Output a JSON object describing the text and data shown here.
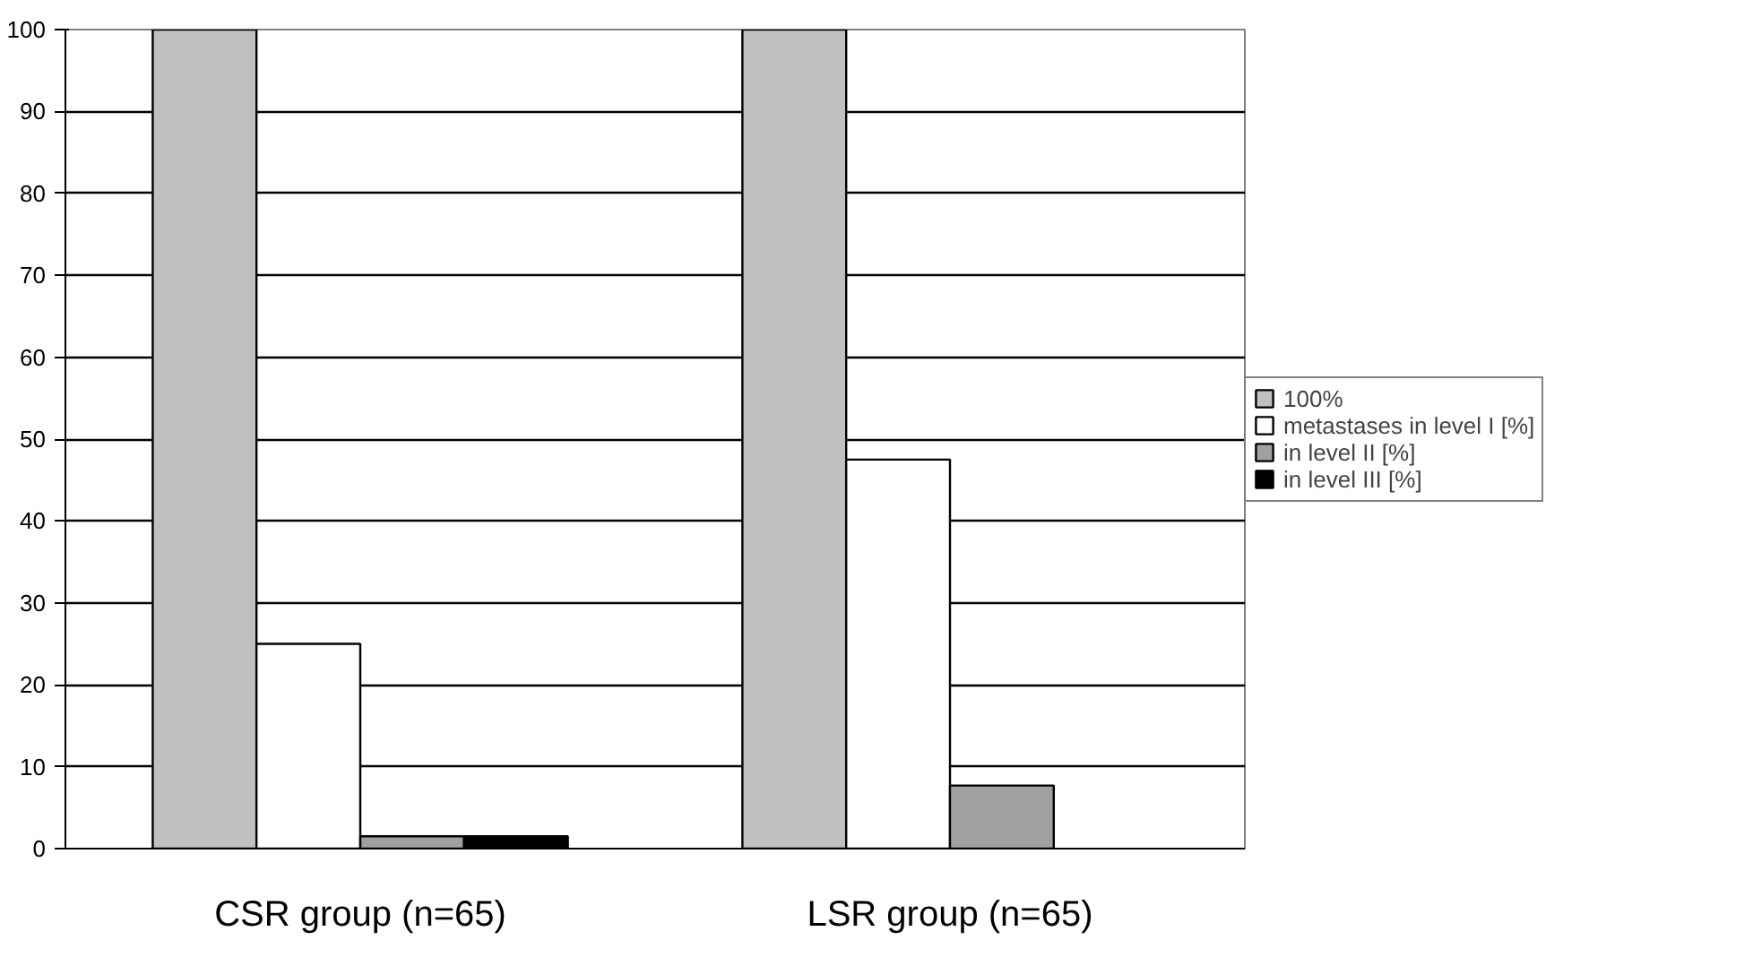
{
  "chart_data": {
    "type": "bar",
    "categories": [
      "CSR group (n=65)",
      "LSR group (n=65)"
    ],
    "series": [
      {
        "name": "100%",
        "color": "#c0c0c0",
        "values": [
          100,
          100
        ]
      },
      {
        "name": "metastases in level I [%]",
        "color": "#ffffff",
        "values": [
          25,
          47.5
        ]
      },
      {
        "name": "in level II [%]",
        "color": "#a0a0a0",
        "values": [
          1.5,
          7.7
        ]
      },
      {
        "name": "in level III [%]",
        "color": "#000000",
        "values": [
          1.5,
          null
        ]
      }
    ],
    "ylim": [
      0,
      100
    ],
    "yticks": [
      0,
      10,
      20,
      30,
      40,
      50,
      60,
      70,
      80,
      90,
      100
    ],
    "grid": "y",
    "legend": "right"
  }
}
